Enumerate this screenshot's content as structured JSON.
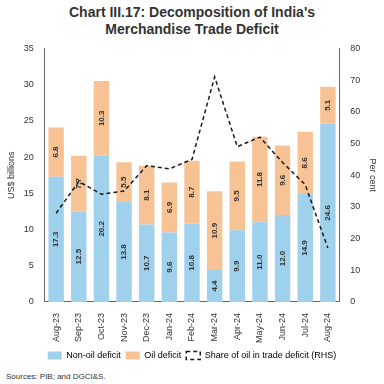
{
  "chart_data": {
    "type": "bar",
    "title": "Chart III.17: Decomposition of India's Merchandise Trade Deficit",
    "y_label": "US$ billions",
    "y2_label": "Per cent",
    "source": "Sources: PIB; and DGCI&S.",
    "categories": [
      "Aug-23",
      "Sep-23",
      "Oct-23",
      "Nov-23",
      "Dec-23",
      "Jan-24",
      "Feb-24",
      "Mar-24",
      "Apr-24",
      "May-24",
      "Jun-24",
      "Jul-24",
      "Aug-24"
    ],
    "stacked": true,
    "data_labels": true,
    "legend": "bottom",
    "grid": false,
    "series": [
      {
        "name": "Non-oil deficit",
        "type": "bar",
        "color": "#9fd0ec",
        "values": [
          17.3,
          12.5,
          20.2,
          13.8,
          10.7,
          9.6,
          10.8,
          4.4,
          9.9,
          11,
          12,
          14.9,
          24.6
        ],
        "value_labels": [
          "17.3",
          "12.5",
          "20.2",
          "13.8",
          "10.7",
          "9.6",
          "10.8",
          "4.4",
          "9.9",
          "11.0",
          "12.0",
          "14.9",
          "24.6"
        ]
      },
      {
        "name": "Oil deficit",
        "type": "bar",
        "color": "#f7c394",
        "values": [
          6.8,
          7.7,
          10.3,
          5.5,
          8.1,
          6.9,
          8.7,
          10.9,
          9.5,
          11.8,
          9.6,
          8.6,
          5.1
        ],
        "value_labels": [
          "6.8",
          "7.7",
          "10.3",
          "5.5",
          "8.1",
          "6.9",
          "8.7",
          "10.9",
          "9.5",
          "11.8",
          "9.6",
          "8.6",
          "5.1"
        ]
      },
      {
        "name": "Share of oil in trade deficit (RHS)",
        "type": "line",
        "axis": "y2",
        "color": "#1a1a1a",
        "line_style": "dashed",
        "marker": "none",
        "values": [
          28,
          38,
          34,
          35,
          43,
          42,
          45,
          71,
          49,
          52,
          44,
          37,
          17
        ]
      }
    ],
    "ylim": [
      0,
      35
    ],
    "yticks": [
      0,
      5,
      10,
      15,
      20,
      25,
      30,
      35
    ],
    "y2lim": [
      0,
      80
    ],
    "y2ticks": [
      0,
      10,
      20,
      30,
      40,
      50,
      60,
      70,
      80
    ]
  }
}
